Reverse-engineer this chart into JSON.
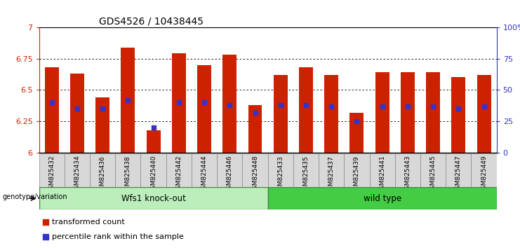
{
  "title": "GDS4526 / 10438445",
  "samples": [
    "GSM825432",
    "GSM825434",
    "GSM825436",
    "GSM825438",
    "GSM825440",
    "GSM825442",
    "GSM825444",
    "GSM825446",
    "GSM825448",
    "GSM825433",
    "GSM825435",
    "GSM825437",
    "GSM825439",
    "GSM825441",
    "GSM825443",
    "GSM825445",
    "GSM825447",
    "GSM825449"
  ],
  "bar_heights": [
    6.68,
    6.63,
    6.44,
    6.84,
    6.18,
    6.79,
    6.7,
    6.78,
    6.38,
    6.62,
    6.68,
    6.62,
    6.32,
    6.64,
    6.64,
    6.64,
    6.6,
    6.62
  ],
  "percentile_values": [
    40,
    35,
    35,
    42,
    20,
    40,
    40,
    38,
    32,
    38,
    38,
    37,
    25,
    37,
    37,
    37,
    35,
    37
  ],
  "ymin": 6.0,
  "ymax": 7.0,
  "yticks": [
    6.0,
    6.25,
    6.5,
    6.75,
    7.0
  ],
  "ytick_labels": [
    "6",
    "6.25",
    "6.5",
    "6.75",
    "7"
  ],
  "right_yticks": [
    0,
    25,
    50,
    75,
    100
  ],
  "right_ytick_labels": [
    "0",
    "25",
    "50",
    "75",
    "100%"
  ],
  "bar_color": "#cc2200",
  "marker_color": "#3333cc",
  "bar_bottom": 6.0,
  "group1_label": "Wfs1 knock-out",
  "group2_label": "wild type",
  "group1_count": 9,
  "group2_count": 9,
  "group1_color": "#bbeebb",
  "group2_color": "#44cc44",
  "genotype_label": "genotype/variation",
  "legend1": "transformed count",
  "legend2": "percentile rank within the sample",
  "title_fontsize": 10,
  "axis_label_color_left": "#cc2200",
  "axis_label_color_right": "#3333cc",
  "sample_box_color": "#d8d8d8",
  "grid_color": "#555555"
}
